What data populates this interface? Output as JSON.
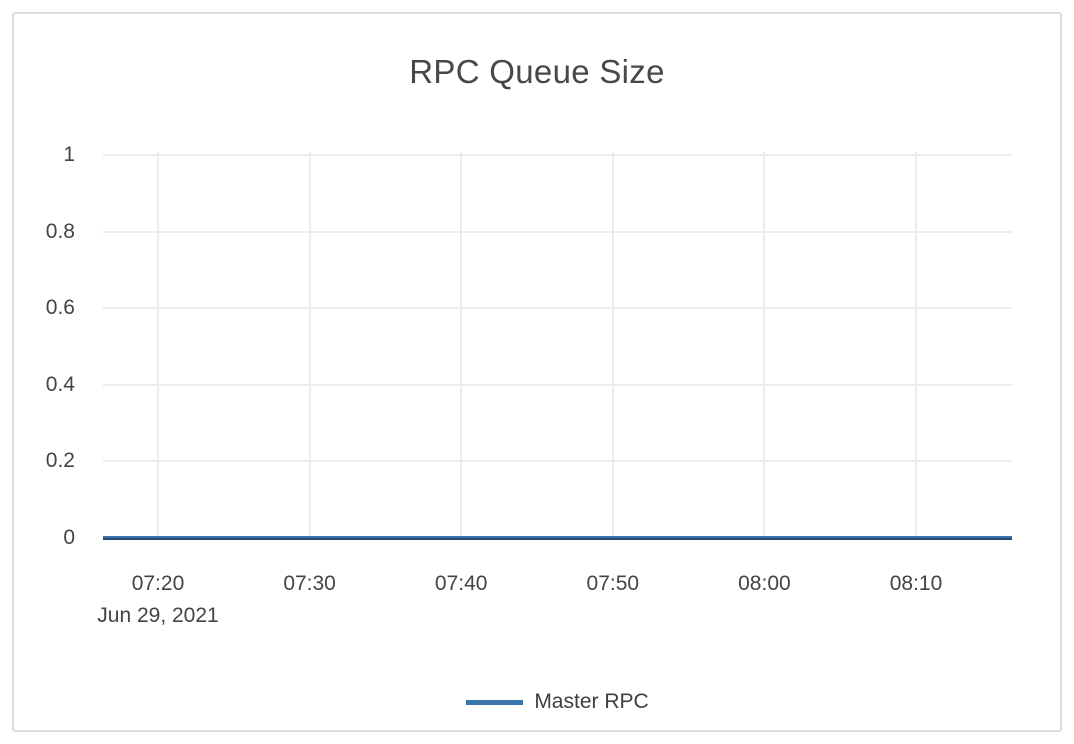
{
  "chart_data": {
    "type": "line",
    "title": "RPC Queue Size",
    "xlabel": "",
    "ylabel": "",
    "x_tick_labels": [
      "07:20",
      "07:30",
      "07:40",
      "07:50",
      "08:00",
      "08:10"
    ],
    "x_date_label": "Jun 29, 2021",
    "y_tick_labels": [
      "1",
      "0.8",
      "0.6",
      "0.4",
      "0.2",
      "0"
    ],
    "ylim": [
      0,
      1
    ],
    "x_range_approx": [
      "07:16",
      "08:16"
    ],
    "grid": true,
    "legend_position": "bottom-center",
    "series": [
      {
        "name": "Master RPC",
        "color": "#3b74ac",
        "x": [
          "07:20",
          "07:30",
          "07:40",
          "07:50",
          "08:00",
          "08:10"
        ],
        "values": [
          0,
          0,
          0,
          0,
          0,
          0
        ],
        "shape": "constant-zero-flat-line"
      }
    ],
    "colors": {
      "grid": "#ececec",
      "axis_zero_line": "#26496e",
      "text": "#444444",
      "title_text": "#484848",
      "card_border": "#dcdcdc",
      "background": "#ffffff"
    }
  }
}
